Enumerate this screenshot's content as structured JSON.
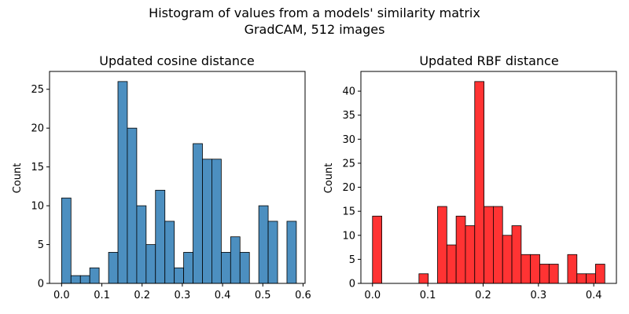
{
  "figure": {
    "suptitle_line1": "Histogram of values from a models' similarity matrix",
    "suptitle_line2": "GradCAM, 512 images"
  },
  "chart_data": [
    {
      "type": "bar",
      "title": "Updated cosine distance",
      "xlabel": "",
      "ylabel": "Count",
      "color": "#4c8fc0",
      "xlim": [
        -0.03,
        0.605
      ],
      "ylim": [
        0,
        27.3
      ],
      "xticks": [
        0.0,
        0.1,
        0.2,
        0.3,
        0.4,
        0.5,
        0.6
      ],
      "xtick_labels": [
        "0.0",
        "0.1",
        "0.2",
        "0.3",
        "0.4",
        "0.5",
        "0.6"
      ],
      "yticks": [
        0,
        5,
        10,
        15,
        20,
        25
      ],
      "ytick_labels": [
        "0",
        "5",
        "10",
        "15",
        "20",
        "25"
      ],
      "bin_edges": [
        0.0,
        0.0233,
        0.0467,
        0.07,
        0.0933,
        0.1167,
        0.14,
        0.1633,
        0.1867,
        0.21,
        0.2333,
        0.2567,
        0.28,
        0.3033,
        0.3267,
        0.35,
        0.3733,
        0.3967,
        0.42,
        0.4433,
        0.4667,
        0.49,
        0.5133,
        0.5367,
        0.56,
        0.5833
      ],
      "values": [
        11,
        1,
        1,
        2,
        0,
        4,
        26,
        20,
        10,
        5,
        12,
        8,
        2,
        4,
        18,
        16,
        16,
        4,
        6,
        4,
        0,
        10,
        8,
        0,
        8
      ]
    },
    {
      "type": "bar",
      "title": "Updated RBF distance",
      "xlabel": "",
      "ylabel": "Count",
      "color": "#ff3333",
      "xlim": [
        -0.021,
        0.441
      ],
      "ylim": [
        0,
        44.1
      ],
      "xticks": [
        0.0,
        0.1,
        0.2,
        0.3,
        0.4
      ],
      "xtick_labels": [
        "0.0",
        "0.1",
        "0.2",
        "0.3",
        "0.4"
      ],
      "yticks": [
        0,
        5,
        10,
        15,
        20,
        25,
        30,
        35,
        40
      ],
      "ytick_labels": [
        "0",
        "5",
        "10",
        "15",
        "20",
        "25",
        "30",
        "35",
        "40"
      ],
      "bin_edges": [
        0.0,
        0.0168,
        0.0336,
        0.0504,
        0.0672,
        0.084,
        0.1008,
        0.1176,
        0.1344,
        0.1512,
        0.168,
        0.1848,
        0.2016,
        0.2184,
        0.2352,
        0.252,
        0.2688,
        0.2856,
        0.3024,
        0.3192,
        0.336,
        0.3528,
        0.3696,
        0.3864,
        0.4032,
        0.42
      ],
      "values": [
        14,
        0,
        0,
        0,
        0,
        2,
        0,
        16,
        8,
        14,
        12,
        42,
        16,
        16,
        10,
        12,
        6,
        6,
        4,
        4,
        0,
        6,
        2,
        2,
        4
      ]
    }
  ]
}
